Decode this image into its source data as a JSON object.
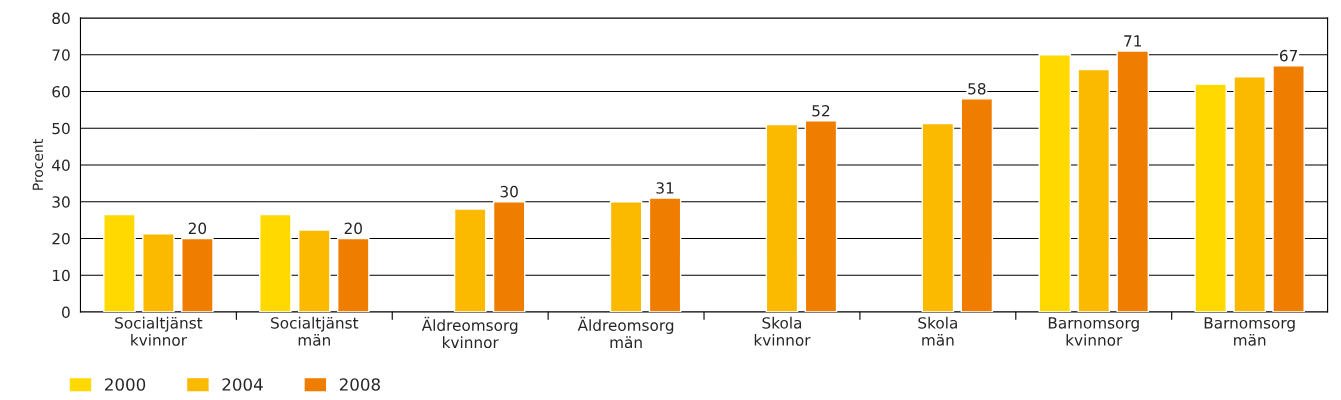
{
  "chart_data": {
    "type": "bar",
    "ylabel": "Procent",
    "categories": [
      "Socialtjänst\nkvinnor",
      "Socialtjänst\nmän",
      "Äldreomsorg\nkvinnor",
      "Äldreomsorg\nmän",
      "Skola\nkvinnor",
      "Skola\nmän",
      "Barnomsorg\nkvinnor",
      "Barnomsorg\nmän"
    ],
    "series": [
      {
        "name": "2000",
        "color": "#ffd900",
        "values": [
          26.5,
          26.5,
          null,
          null,
          null,
          null,
          70,
          62
        ]
      },
      {
        "name": "2004",
        "color": "#fbb900",
        "values": [
          21.3,
          22.3,
          28,
          30,
          51,
          51.3,
          66,
          64
        ]
      },
      {
        "name": "2008",
        "color": "#ef7d00",
        "values": [
          20,
          20,
          30,
          31,
          52,
          58,
          71,
          67
        ],
        "value_labels": [
          "20",
          "20",
          "30",
          "31",
          "52",
          "58",
          "71",
          "67"
        ]
      }
    ],
    "ylim": [
      0,
      80
    ],
    "yticks": [
      0,
      10,
      20,
      30,
      40,
      50,
      60,
      70,
      80
    ],
    "grid": "y",
    "legend": "bottom left"
  }
}
